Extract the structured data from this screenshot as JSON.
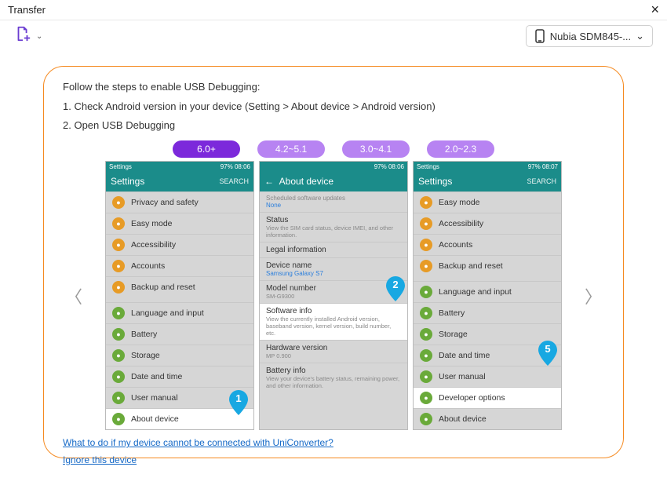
{
  "window": {
    "title": "Transfer",
    "close_glyph": "×"
  },
  "toolbar": {
    "device_label": "Nubia SDM845-...",
    "chevron": "⌄"
  },
  "instructions": {
    "line0": "Follow the steps to enable USB Debugging:",
    "line1": "1. Check Android version in your device (Setting > About device > Android version)",
    "line2": "2. Open USB Debugging"
  },
  "version_tabs": [
    {
      "label": "6.0+",
      "selected": true
    },
    {
      "label": "4.2~5.1",
      "selected": false
    },
    {
      "label": "3.0~4.1",
      "selected": false
    },
    {
      "label": "2.0~2.3",
      "selected": false
    }
  ],
  "nav": {
    "prev_glyph": "〈",
    "next_glyph": "〉"
  },
  "phone_common": {
    "status_left": "Settings",
    "status_right": "97%  08:06",
    "status_right2": "97%  08:06",
    "status_right3": "97%  08:07",
    "app_title": "Settings",
    "app_search": "SEARCH",
    "about_title": "About device"
  },
  "phone1": {
    "items_a": [
      {
        "label": "Privacy and safety",
        "color": "orange"
      },
      {
        "label": "Easy mode",
        "color": "orange"
      },
      {
        "label": "Accessibility",
        "color": "orange"
      },
      {
        "label": "Accounts",
        "color": "orange"
      },
      {
        "label": "Backup and reset",
        "color": "orange"
      }
    ],
    "items_b": [
      {
        "label": "Language and input",
        "color": "green"
      },
      {
        "label": "Battery",
        "color": "green"
      },
      {
        "label": "Storage",
        "color": "green"
      },
      {
        "label": "Date and time",
        "color": "green"
      },
      {
        "label": "User manual",
        "color": "green"
      },
      {
        "label": "About device",
        "color": "green",
        "hl": true
      }
    ],
    "step": "1"
  },
  "phone2": {
    "header_small": "Scheduled software updates",
    "header_link": "None",
    "rows": [
      {
        "title": "Status",
        "sub": "View the SIM card status, device IMEI, and other information."
      },
      {
        "title": "Legal information",
        "sub": ""
      },
      {
        "title": "Device name",
        "link": "Samsung Galaxy S7"
      },
      {
        "title": "Model number",
        "sub": "SM-G9300"
      },
      {
        "title": "Software info",
        "sub": "View the currently installed Android version, baseband version, kernel version, build number, etc.",
        "hl": true
      },
      {
        "title": "Hardware version",
        "sub": "MP 0.900"
      },
      {
        "title": "Battery info",
        "sub": "View your device's battery status, remaining power, and other information."
      }
    ],
    "step": "2"
  },
  "phone3": {
    "items_a": [
      {
        "label": "Easy mode",
        "color": "orange"
      },
      {
        "label": "Accessibility",
        "color": "orange"
      },
      {
        "label": "Accounts",
        "color": "orange"
      },
      {
        "label": "Backup and reset",
        "color": "orange"
      }
    ],
    "items_b": [
      {
        "label": "Language and input",
        "color": "green"
      },
      {
        "label": "Battery",
        "color": "green"
      },
      {
        "label": "Storage",
        "color": "green"
      },
      {
        "label": "Date and time",
        "color": "green"
      },
      {
        "label": "User manual",
        "color": "green"
      },
      {
        "label": "Developer options",
        "color": "green",
        "hl": true
      },
      {
        "label": "About device",
        "color": "green"
      }
    ],
    "step": "5"
  },
  "links": {
    "help": "What to do if my device cannot be connected with UniConverter?",
    "ignore": "Ignore this device"
  },
  "colors": {
    "accent": "#f58a20",
    "tab_sel": "#7c29db",
    "tab_unsel": "#b783f2",
    "badge": "#18a8e2"
  }
}
